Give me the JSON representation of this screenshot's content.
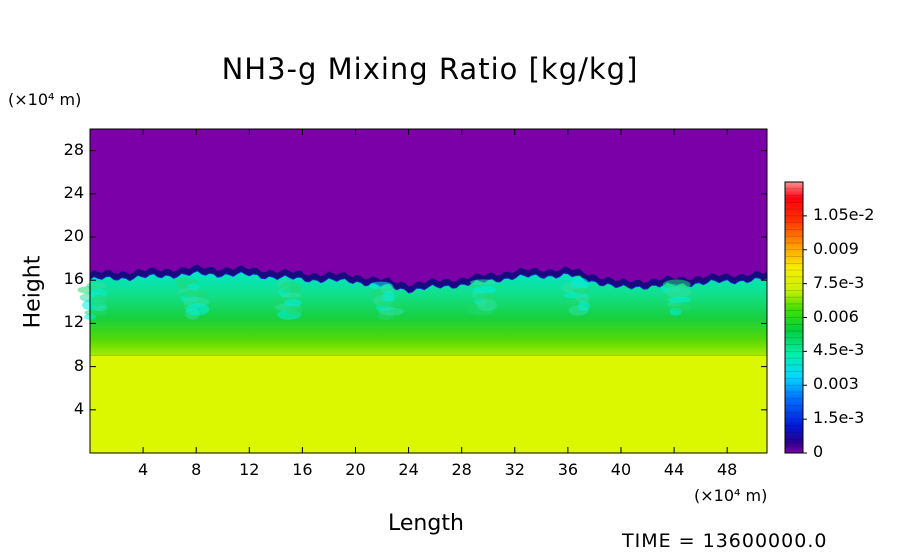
{
  "chart_data": {
    "type": "heatmap",
    "title": "NH3-g Mixing Ratio [kg/kg]",
    "xlabel": "Length",
    "ylabel": "Height",
    "x_unit": "(×10⁴ m)",
    "y_unit": "(×10⁴ m)",
    "xlim": [
      0,
      51
    ],
    "ylim": [
      0,
      30
    ],
    "x_ticks": [
      "4",
      "8",
      "12",
      "16",
      "20",
      "24",
      "28",
      "32",
      "36",
      "40",
      "44",
      "48"
    ],
    "y_ticks": [
      "4",
      "8",
      "12",
      "16",
      "20",
      "24",
      "28"
    ],
    "colorbar": {
      "range": [
        0,
        0.012
      ],
      "tick_labels": [
        "0",
        "1.5e-3",
        "0.003",
        "4.5e-3",
        "0.006",
        "7.5e-3",
        "0.009",
        "1.05e-2"
      ],
      "tick_values": [
        0,
        0.0015,
        0.003,
        0.0045,
        0.006,
        0.0075,
        0.009,
        0.0105
      ]
    },
    "layers": [
      {
        "name": "upper",
        "y_range": [
          16.5,
          30
        ],
        "value": 0.0
      },
      {
        "name": "transition",
        "y_range": [
          15.5,
          16.8
        ],
        "value": 0.0012
      },
      {
        "name": "mixed",
        "y_range": [
          12,
          16
        ],
        "value": 0.0042
      },
      {
        "name": "lower-mixed",
        "y_range": [
          9,
          12.5
        ],
        "value": 0.0062
      },
      {
        "name": "bottom",
        "y_range": [
          0,
          9
        ],
        "value": 0.0074
      }
    ],
    "interface_height_profile": {
      "x": [
        0,
        4,
        8,
        12,
        16,
        20,
        24,
        28,
        32,
        36,
        40,
        44,
        48,
        51
      ],
      "y": [
        16.4,
        16.6,
        16.9,
        16.8,
        16.4,
        16.2,
        15.4,
        15.9,
        16.6,
        16.8,
        15.6,
        15.9,
        16.2,
        16.4
      ]
    }
  },
  "footer": {
    "time_text": "TIME = 13600000.0"
  }
}
